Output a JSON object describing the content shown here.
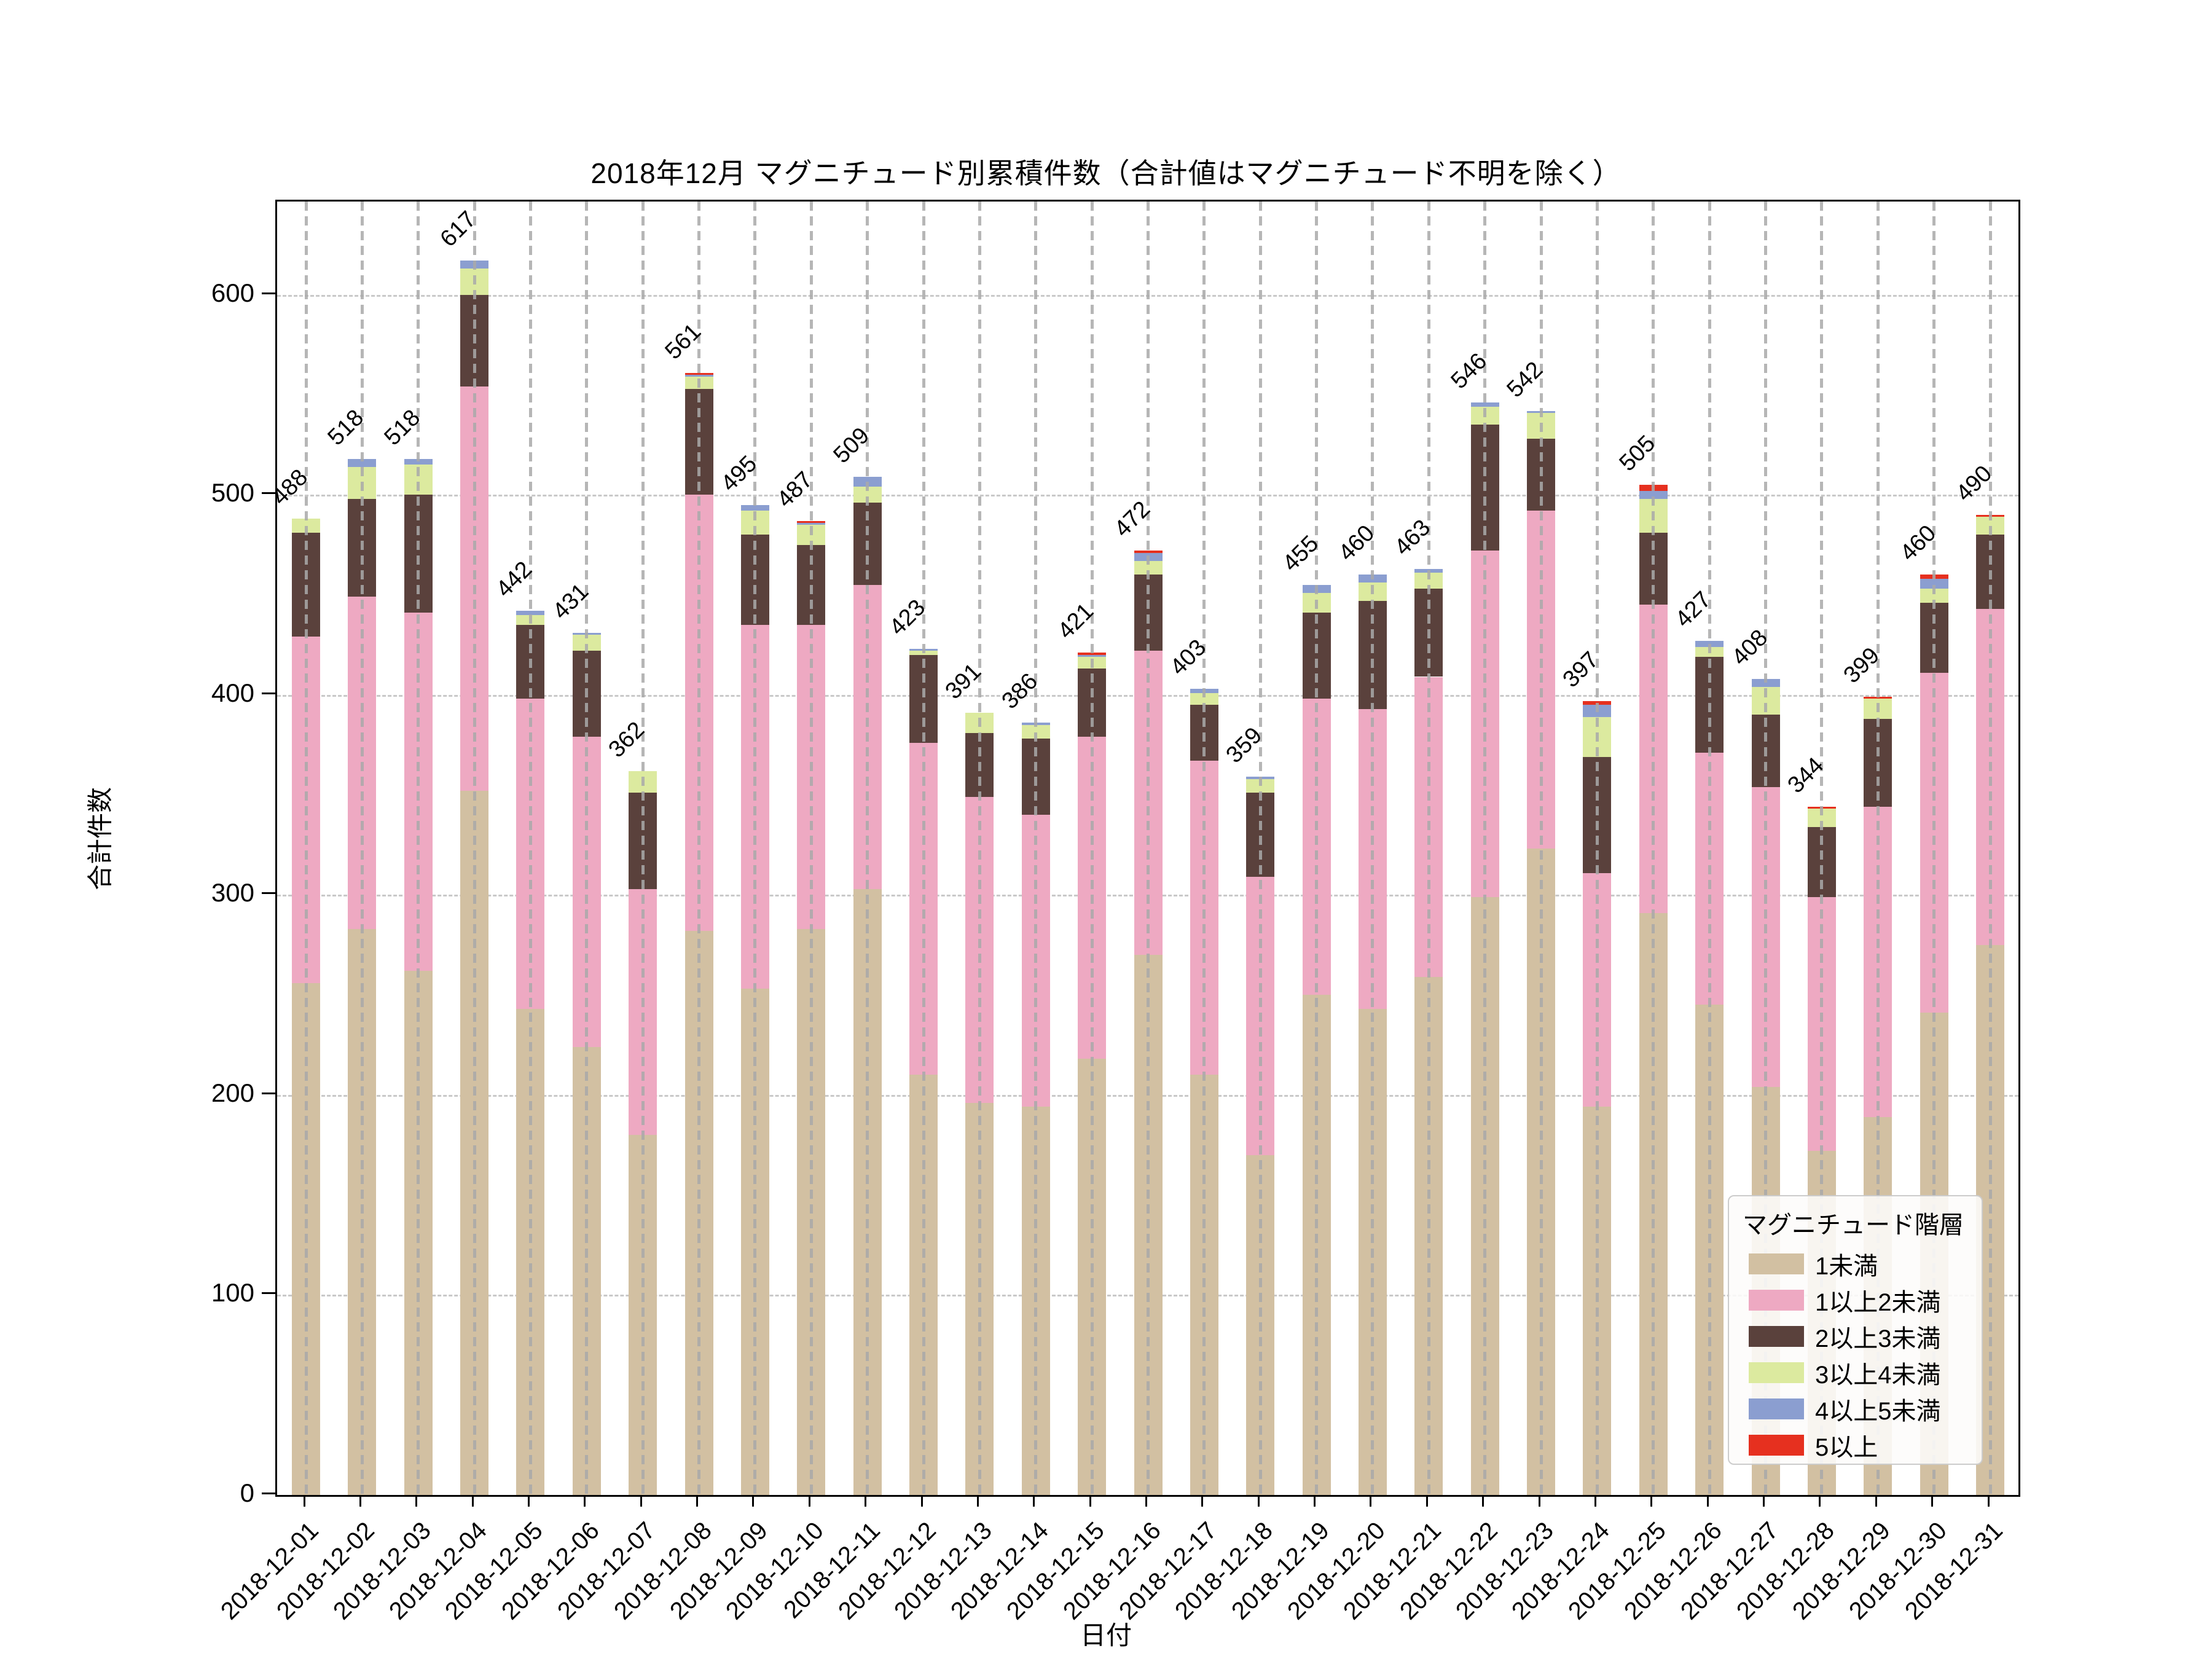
{
  "title": "2018年12月 マグニチュード別累積件数（合計値はマグニチュード不明を除く）",
  "chart_data": {
    "type": "bar",
    "stacked": true,
    "title": "2018年12月 マグニチュード別累積件数（合計値はマグニチュード不明を除く）",
    "xlabel": "日付",
    "ylabel": "合計件数",
    "ylim": [
      0,
      646
    ],
    "yticks": [
      0,
      100,
      200,
      300,
      400,
      500,
      600
    ],
    "grid": true,
    "legend_title": "マグニチュード階層",
    "legend_position": "lower right",
    "categories": [
      "2018-12-01",
      "2018-12-02",
      "2018-12-03",
      "2018-12-04",
      "2018-12-05",
      "2018-12-06",
      "2018-12-07",
      "2018-12-08",
      "2018-12-09",
      "2018-12-10",
      "2018-12-11",
      "2018-12-12",
      "2018-12-13",
      "2018-12-14",
      "2018-12-15",
      "2018-12-16",
      "2018-12-17",
      "2018-12-18",
      "2018-12-19",
      "2018-12-20",
      "2018-12-21",
      "2018-12-22",
      "2018-12-23",
      "2018-12-24",
      "2018-12-25",
      "2018-12-26",
      "2018-12-27",
      "2018-12-28",
      "2018-12-29",
      "2018-12-30",
      "2018-12-31"
    ],
    "totals": [
      488,
      518,
      518,
      617,
      442,
      431,
      362,
      561,
      495,
      487,
      509,
      423,
      391,
      386,
      421,
      472,
      403,
      359,
      455,
      460,
      463,
      546,
      542,
      397,
      505,
      427,
      408,
      344,
      399,
      460,
      490
    ],
    "series": [
      {
        "name": "1未満",
        "color": "#d2c0a2",
        "values": [
          256,
          283,
          262,
          352,
          243,
          224,
          180,
          282,
          253,
          283,
          303,
          210,
          196,
          194,
          218,
          270,
          210,
          170,
          250,
          243,
          259,
          299,
          323,
          194,
          291,
          245,
          204,
          172,
          189,
          241,
          275
        ]
      },
      {
        "name": "1以上2未満",
        "color": "#eea9c2",
        "values": [
          173,
          166,
          179,
          202,
          155,
          155,
          123,
          218,
          182,
          152,
          152,
          166,
          153,
          146,
          161,
          152,
          157,
          139,
          148,
          150,
          150,
          173,
          169,
          117,
          154,
          126,
          150,
          127,
          155,
          170,
          168
        ]
      },
      {
        "name": "2以上3未満",
        "color": "#5a413c",
        "values": [
          52,
          49,
          59,
          46,
          37,
          43,
          48,
          53,
          45,
          40,
          41,
          44,
          32,
          38,
          34,
          38,
          28,
          42,
          43,
          54,
          44,
          63,
          36,
          58,
          36,
          48,
          36,
          35,
          44,
          35,
          37
        ]
      },
      {
        "name": "3以上4未満",
        "color": "#dcea9f",
        "values": [
          7,
          16,
          15,
          13,
          5,
          8,
          11,
          6,
          12,
          10,
          8,
          2,
          10,
          7,
          6,
          7,
          6,
          7,
          10,
          9,
          8,
          9,
          13,
          20,
          17,
          5,
          14,
          9,
          10,
          7,
          9
        ]
      },
      {
        "name": "4以上5未満",
        "color": "#8b9ed0",
        "values": [
          0,
          4,
          3,
          4,
          2,
          1,
          0,
          1,
          3,
          1,
          5,
          1,
          0,
          1,
          1,
          4,
          2,
          1,
          4,
          4,
          2,
          2,
          1,
          6,
          4,
          3,
          4,
          0,
          0,
          5,
          0
        ]
      },
      {
        "name": "5以上",
        "color": "#e6301f",
        "values": [
          0,
          0,
          0,
          0,
          0,
          0,
          0,
          1,
          0,
          1,
          0,
          0,
          0,
          0,
          1,
          1,
          0,
          0,
          0,
          0,
          0,
          0,
          0,
          2,
          3,
          0,
          0,
          1,
          1,
          2,
          1
        ]
      }
    ]
  }
}
